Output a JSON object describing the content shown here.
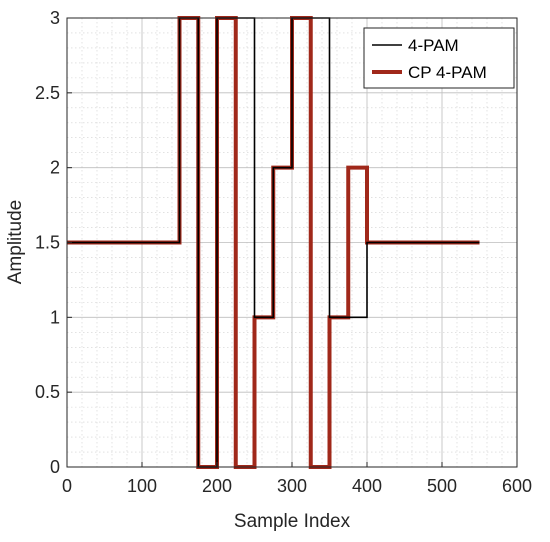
{
  "chart_data": {
    "type": "line",
    "xlabel": "Sample Index",
    "ylabel": "Amplitude",
    "xlim": [
      0,
      600
    ],
    "ylim": [
      0,
      3
    ],
    "xticks": [
      0,
      100,
      200,
      300,
      400,
      500,
      600
    ],
    "yticks": [
      0,
      0.5,
      1,
      1.5,
      2,
      2.5,
      3
    ],
    "grid": true,
    "minor_grid": true,
    "legend_position": "top-right",
    "series": [
      {
        "name": "4-PAM",
        "color": "#000000",
        "points": [
          [
            0,
            1.5
          ],
          [
            150,
            1.5
          ],
          [
            150,
            3
          ],
          [
            175,
            3
          ],
          [
            175,
            0
          ],
          [
            200,
            0
          ],
          [
            200,
            3
          ],
          [
            250,
            3
          ],
          [
            250,
            1
          ],
          [
            275,
            1
          ],
          [
            275,
            2
          ],
          [
            300,
            2
          ],
          [
            300,
            3
          ],
          [
            350,
            3
          ],
          [
            350,
            1
          ],
          [
            375,
            1
          ],
          [
            375,
            1
          ],
          [
            400,
            1
          ],
          [
            400,
            1.5
          ],
          [
            550,
            1.5
          ]
        ]
      },
      {
        "name": "CP 4-PAM",
        "color": "#a0281a",
        "points": [
          [
            0,
            1.5
          ],
          [
            150,
            1.5
          ],
          [
            150,
            3
          ],
          [
            175,
            3
          ],
          [
            175,
            0
          ],
          [
            200,
            0
          ],
          [
            200,
            3
          ],
          [
            225,
            3
          ],
          [
            225,
            0
          ],
          [
            250,
            0
          ],
          [
            250,
            1
          ],
          [
            275,
            1
          ],
          [
            275,
            2
          ],
          [
            300,
            2
          ],
          [
            300,
            3
          ],
          [
            325,
            3
          ],
          [
            325,
            0
          ],
          [
            350,
            0
          ],
          [
            350,
            1
          ],
          [
            375,
            1
          ],
          [
            375,
            2
          ],
          [
            400,
            2
          ],
          [
            400,
            1.5
          ],
          [
            550,
            1.5
          ]
        ]
      }
    ]
  }
}
